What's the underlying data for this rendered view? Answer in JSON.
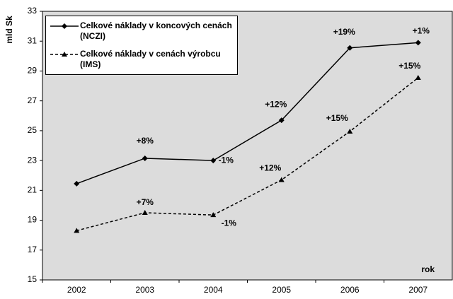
{
  "chart_data": {
    "type": "line",
    "categories": [
      "2002",
      "2003",
      "2004",
      "2005",
      "2006",
      "2007"
    ],
    "ylabel": "mld Sk",
    "xlabel": "rok",
    "ylim": [
      15,
      33
    ],
    "yticks": [
      15,
      17,
      19,
      21,
      23,
      25,
      27,
      29,
      31,
      33
    ],
    "series": [
      {
        "name": "Celkové náklady v koncových cenách (NCZI)",
        "color": "#000000",
        "dash": "solid",
        "marker": "diamond",
        "values": [
          21.45,
          23.15,
          23.0,
          25.7,
          30.55,
          30.9
        ],
        "labels": [
          null,
          "+8%",
          "-1%",
          "+12%",
          "+19%",
          "+1%"
        ]
      },
      {
        "name": "Celkové náklady v cenách výrobcu (IMS)",
        "color": "#000000",
        "dash": "dashed",
        "marker": "triangle",
        "values": [
          18.3,
          19.5,
          19.35,
          21.7,
          24.95,
          28.55
        ],
        "labels": [
          null,
          "+7%",
          "-1%",
          "+12%",
          "+15%",
          "+15%"
        ]
      }
    ]
  }
}
